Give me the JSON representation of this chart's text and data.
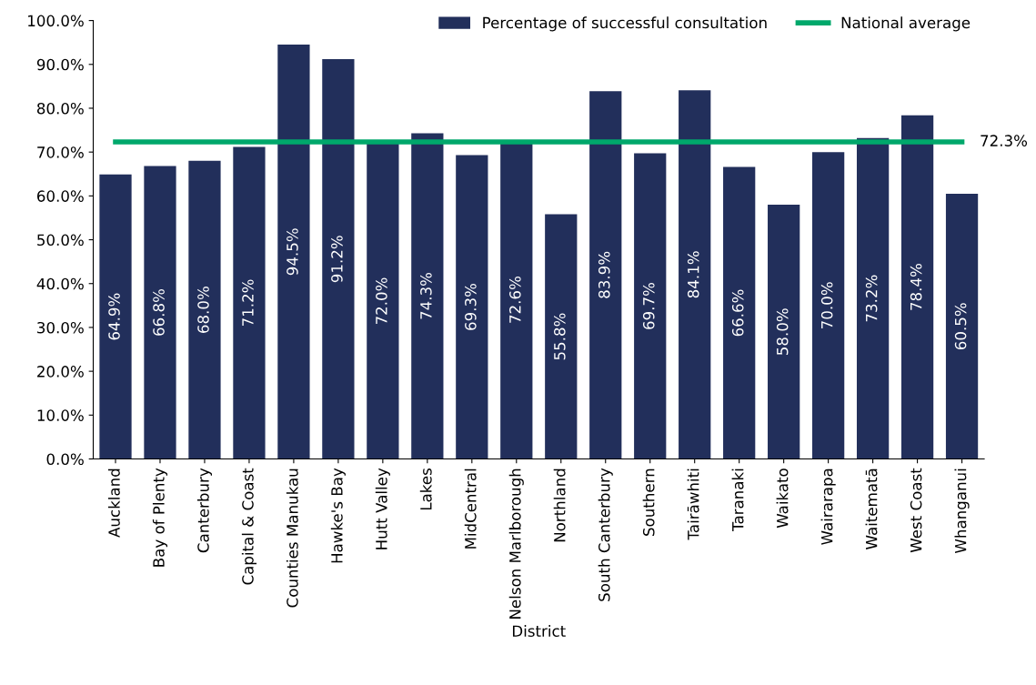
{
  "chart_data": {
    "type": "bar",
    "xlabel": "District",
    "categories": [
      "Auckland",
      "Bay of Plenty",
      "Canterbury",
      "Capital & Coast",
      "Counties Manukau",
      "Hawke's Bay",
      "Hutt Valley",
      "Lakes",
      "MidCentral",
      "Nelson Marlborough",
      "Northland",
      "South Canterbury",
      "Southern",
      "Tairāwhiti",
      "Taranaki",
      "Waikato",
      "Wairarapa",
      "Waitematā",
      "West Coast",
      "Whanganui"
    ],
    "series": [
      {
        "name": "Percentage of successful consultation",
        "color": "#222f5b",
        "values": [
          64.9,
          66.8,
          68.0,
          71.2,
          94.5,
          91.2,
          72.0,
          74.3,
          69.3,
          72.6,
          55.8,
          83.9,
          69.7,
          84.1,
          66.6,
          58.0,
          70.0,
          73.2,
          78.4,
          60.5
        ],
        "value_labels": [
          "64.9%",
          "66.8%",
          "68.0%",
          "71.2%",
          "94.5%",
          "91.2%",
          "72.0%",
          "74.3%",
          "69.3%",
          "72.6%",
          "55.8%",
          "83.9%",
          "69.7%",
          "84.1%",
          "66.6%",
          "58.0%",
          "70.0%",
          "73.2%",
          "78.4%",
          "60.5%"
        ]
      },
      {
        "name": "National average",
        "type": "line",
        "color": "#00a86b",
        "values": [
          72.3,
          72.3,
          72.3,
          72.3,
          72.3,
          72.3,
          72.3,
          72.3,
          72.3,
          72.3,
          72.3,
          72.3,
          72.3,
          72.3,
          72.3,
          72.3,
          72.3,
          72.3,
          72.3,
          72.3
        ]
      }
    ],
    "annotations": [
      {
        "text": "72.3%",
        "x": "Whanganui",
        "y": 72.3
      }
    ],
    "ylim": [
      0,
      100
    ],
    "yticks": [
      {
        "value": 0,
        "label": "0.0%"
      },
      {
        "value": 10,
        "label": "10.0%"
      },
      {
        "value": 20,
        "label": "20.0%"
      },
      {
        "value": 30,
        "label": "30.0%"
      },
      {
        "value": 40,
        "label": "40.0%"
      },
      {
        "value": 50,
        "label": "50.0%"
      },
      {
        "value": 60,
        "label": "60.0%"
      },
      {
        "value": 70,
        "label": "70.0%"
      },
      {
        "value": 80,
        "label": "80.0%"
      },
      {
        "value": 90,
        "label": "90.0%"
      },
      {
        "value": 100,
        "label": "100.0%"
      }
    ],
    "grid": false,
    "legend": "top right",
    "marker": "none",
    "line_style": "solid"
  }
}
